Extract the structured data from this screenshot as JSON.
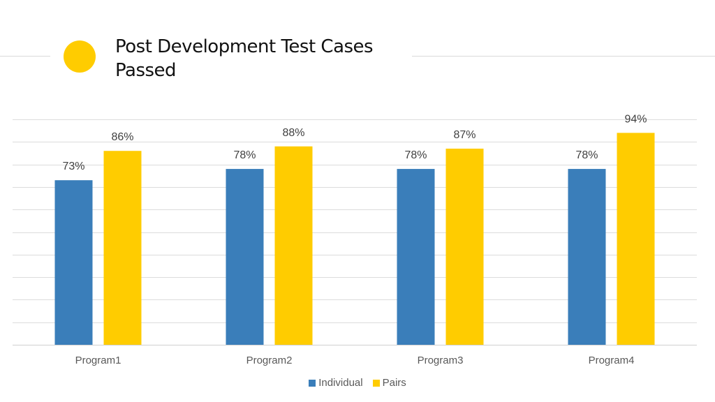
{
  "slide": {
    "title": "Post Development Test Cases Passed",
    "accent_color": "#FFCC00"
  },
  "chart_data": {
    "type": "bar",
    "title": "",
    "xlabel": "",
    "ylabel": "",
    "ylim": [
      0,
      100
    ],
    "grid": true,
    "legend_position": "bottom",
    "categories": [
      "Program1",
      "Program2",
      "Program3",
      "Program4"
    ],
    "series": [
      {
        "name": "Individual",
        "color": "#3A7EBA",
        "values": [
          73,
          78,
          78,
          78
        ]
      },
      {
        "name": "Pairs",
        "color": "#FFCC00",
        "values": [
          86,
          88,
          87,
          94
        ]
      }
    ],
    "value_suffix": "%"
  }
}
